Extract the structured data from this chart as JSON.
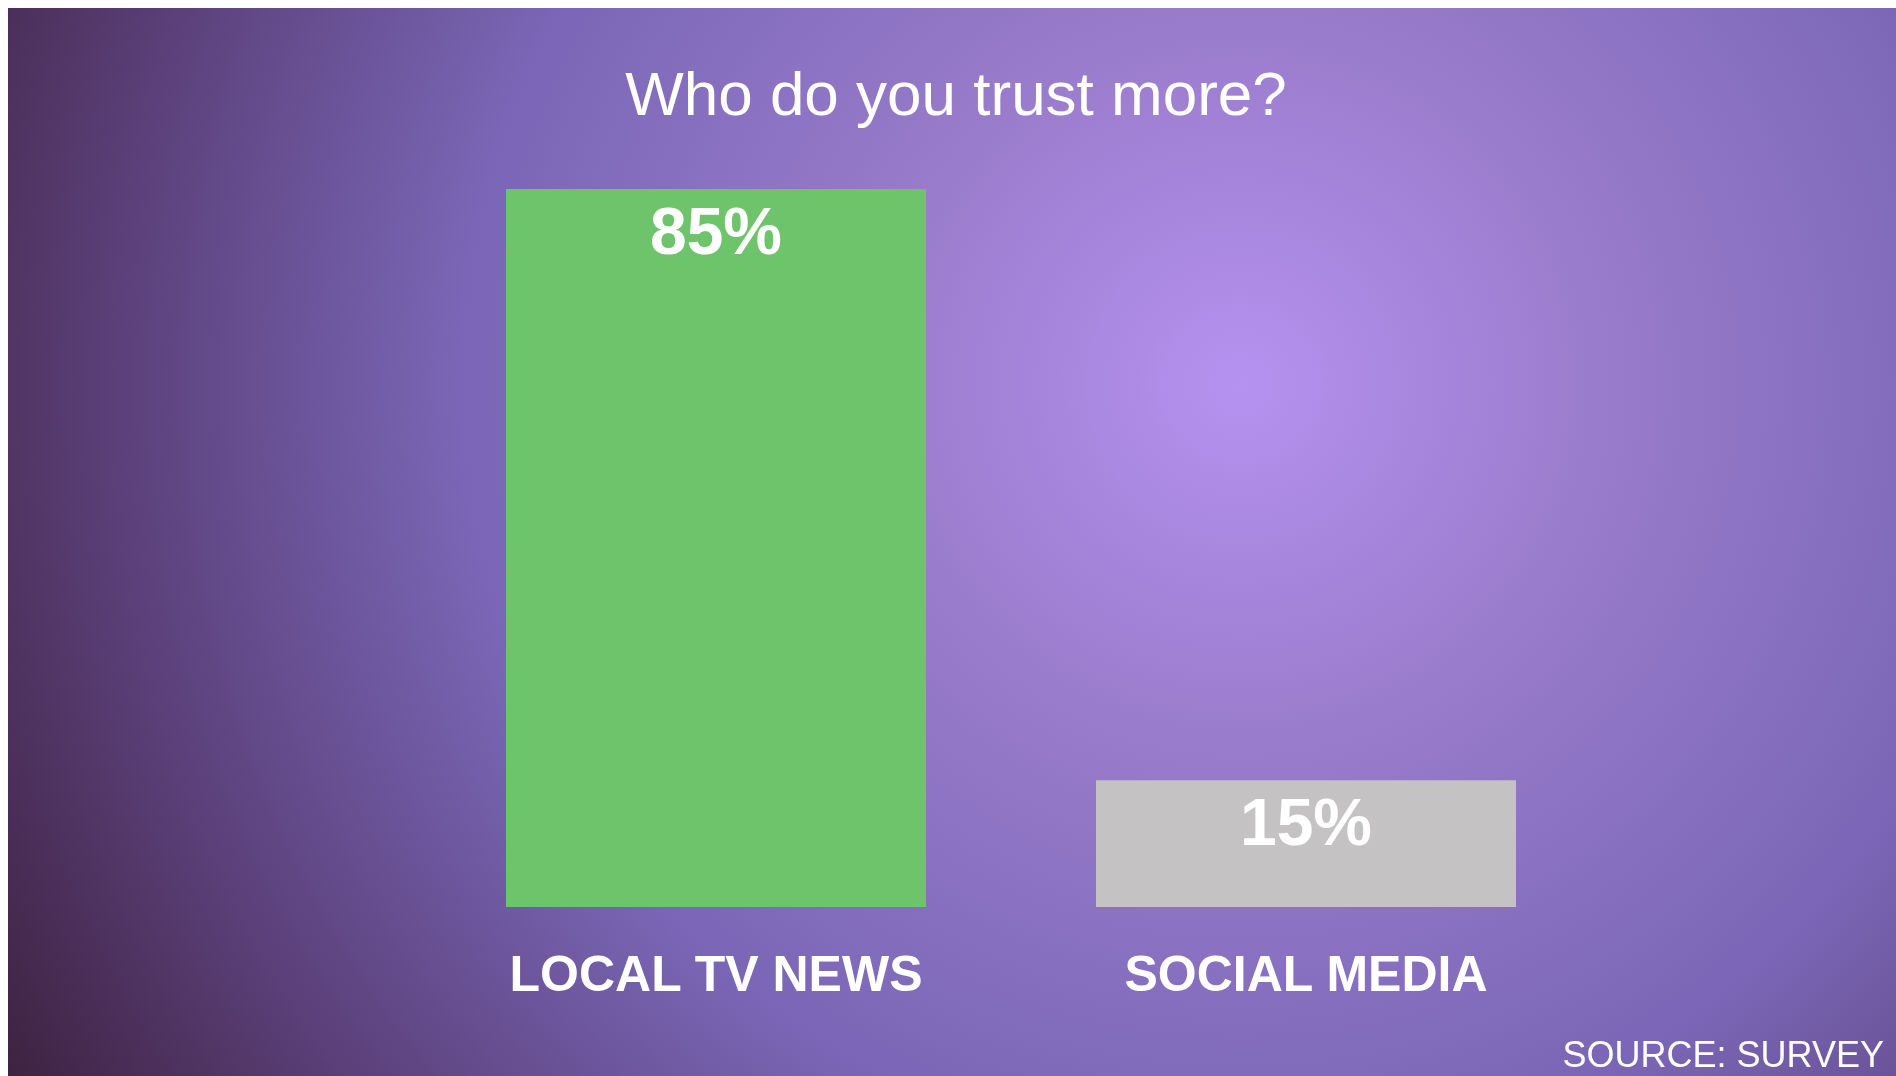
{
  "chart_data": {
    "type": "bar",
    "title": "Who do you trust more?",
    "categories": [
      "LOCAL TV NEWS",
      "SOCIAL MEDIA"
    ],
    "values": [
      85,
      15
    ],
    "colors": [
      "#6ec46a",
      "#c4c2c2"
    ],
    "value_labels": [
      "85%",
      "15%"
    ],
    "annotations": [
      "SOURCE: SURVEY"
    ]
  }
}
